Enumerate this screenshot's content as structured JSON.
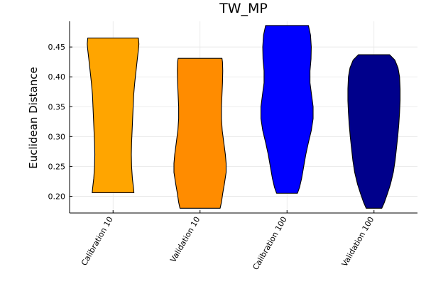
{
  "chart_data": {
    "type": "violin",
    "title": "TW_MP",
    "xlabel": "",
    "ylabel": "Euclidean Distance",
    "ylim": [
      0.172,
      0.493
    ],
    "yticks": [
      0.2,
      0.25,
      0.3,
      0.35,
      0.4,
      0.45
    ],
    "ytick_labels": [
      "0.20",
      "0.25",
      "0.30",
      "0.35",
      "0.40",
      "0.45"
    ],
    "grid": true,
    "legend": "none",
    "categories": [
      "Calibration 10",
      "Validation 10",
      "Calibration 100",
      "Validation 100"
    ],
    "series": [
      {
        "category": "Calibration 10",
        "color": "#FFA500",
        "min": 0.206,
        "max": 0.465,
        "profile": [
          [
            0.206,
            0.8
          ],
          [
            0.215,
            0.78
          ],
          [
            0.23,
            0.74
          ],
          [
            0.25,
            0.71
          ],
          [
            0.27,
            0.7
          ],
          [
            0.29,
            0.71
          ],
          [
            0.31,
            0.73
          ],
          [
            0.33,
            0.75
          ],
          [
            0.35,
            0.77
          ],
          [
            0.37,
            0.79
          ],
          [
            0.39,
            0.83
          ],
          [
            0.41,
            0.88
          ],
          [
            0.43,
            0.93
          ],
          [
            0.445,
            0.97
          ],
          [
            0.455,
            0.99
          ],
          [
            0.465,
            0.97
          ]
        ]
      },
      {
        "category": "Validation 10",
        "color": "#FF8C00",
        "min": 0.18,
        "max": 0.431,
        "profile": [
          [
            0.18,
            0.77
          ],
          [
            0.19,
            0.82
          ],
          [
            0.205,
            0.87
          ],
          [
            0.22,
            0.93
          ],
          [
            0.24,
            1.0
          ],
          [
            0.255,
            1.0
          ],
          [
            0.27,
            0.97
          ],
          [
            0.29,
            0.91
          ],
          [
            0.31,
            0.85
          ],
          [
            0.33,
            0.82
          ],
          [
            0.35,
            0.82
          ],
          [
            0.37,
            0.84
          ],
          [
            0.39,
            0.86
          ],
          [
            0.41,
            0.87
          ],
          [
            0.425,
            0.86
          ],
          [
            0.431,
            0.84
          ]
        ]
      },
      {
        "category": "Calibration 100",
        "color": "#0000FF",
        "min": 0.205,
        "max": 0.486,
        "profile": [
          [
            0.205,
            0.4
          ],
          [
            0.215,
            0.48
          ],
          [
            0.23,
            0.56
          ],
          [
            0.25,
            0.64
          ],
          [
            0.27,
            0.72
          ],
          [
            0.29,
            0.82
          ],
          [
            0.31,
            0.93
          ],
          [
            0.33,
            1.0
          ],
          [
            0.35,
            1.0
          ],
          [
            0.37,
            0.94
          ],
          [
            0.39,
            0.88
          ],
          [
            0.41,
            0.88
          ],
          [
            0.43,
            0.92
          ],
          [
            0.45,
            0.93
          ],
          [
            0.47,
            0.9
          ],
          [
            0.486,
            0.82
          ]
        ]
      },
      {
        "category": "Validation 100",
        "color": "#00008B",
        "min": 0.18,
        "max": 0.437,
        "profile": [
          [
            0.18,
            0.3
          ],
          [
            0.19,
            0.4
          ],
          [
            0.205,
            0.52
          ],
          [
            0.22,
            0.63
          ],
          [
            0.24,
            0.74
          ],
          [
            0.26,
            0.81
          ],
          [
            0.28,
            0.86
          ],
          [
            0.3,
            0.91
          ],
          [
            0.32,
            0.95
          ],
          [
            0.34,
            0.98
          ],
          [
            0.36,
            1.0
          ],
          [
            0.38,
            1.0
          ],
          [
            0.4,
            0.98
          ],
          [
            0.415,
            0.92
          ],
          [
            0.428,
            0.8
          ],
          [
            0.437,
            0.6
          ]
        ]
      }
    ]
  }
}
